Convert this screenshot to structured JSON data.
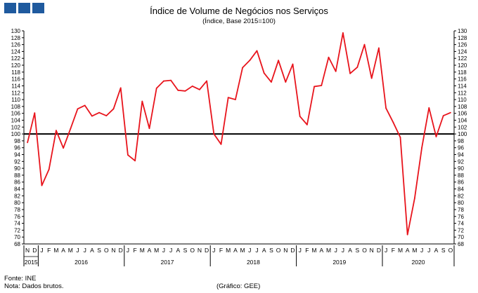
{
  "header": {
    "title": "Índice de Volume de Negócios nos Serviços",
    "subtitle": "(Índice, Base 2015=100)"
  },
  "footer": {
    "source": "Fonte: INE",
    "note": "Nota: Dados brutos.",
    "credit": "(Gráfico: GEE)"
  },
  "colors": {
    "series": "#e8141c",
    "reference": "#000000",
    "logo": "#1f5a9e"
  },
  "icons": [
    "logo-block",
    "logo-block",
    "logo-block"
  ],
  "chart_data": {
    "type": "line",
    "title": "Índice de Volume de Negócios nos Serviços",
    "subtitle": "(Índice, Base 2015=100)",
    "ylim": [
      68,
      130
    ],
    "ytick_step": 2,
    "secondary_y_axis": true,
    "grid": false,
    "reference_line": 100,
    "month_labels": [
      "N",
      "D",
      "J",
      "F",
      "M",
      "A",
      "M",
      "J",
      "J",
      "A",
      "S",
      "O",
      "N",
      "D",
      "J",
      "F",
      "M",
      "A",
      "M",
      "J",
      "J",
      "A",
      "S",
      "O",
      "N",
      "D",
      "J",
      "F",
      "M",
      "A",
      "M",
      "J",
      "J",
      "A",
      "S",
      "O",
      "N",
      "D",
      "J",
      "F",
      "M",
      "A",
      "M",
      "J",
      "J",
      "A",
      "S",
      "O",
      "N",
      "D",
      "J",
      "F",
      "M",
      "A",
      "M",
      "J",
      "J",
      "A",
      "S",
      "O"
    ],
    "year_groups": [
      {
        "label": "2015",
        "start": 0,
        "count": 2
      },
      {
        "label": "2016",
        "start": 2,
        "count": 12
      },
      {
        "label": "2017",
        "start": 14,
        "count": 12
      },
      {
        "label": "2018",
        "start": 26,
        "count": 12
      },
      {
        "label": "2019",
        "start": 38,
        "count": 12
      },
      {
        "label": "2020",
        "start": 50,
        "count": 10
      }
    ],
    "series": [
      {
        "values": [
          97.5,
          106.1,
          85.0,
          89.7,
          101.0,
          95.9,
          101.5,
          107.3,
          108.3,
          105.2,
          106.2,
          105.3,
          107.3,
          113.4,
          93.9,
          92.2,
          109.5,
          101.6,
          113.3,
          115.4,
          115.6,
          112.7,
          112.5,
          113.9,
          112.9,
          115.4,
          100.0,
          97.0,
          110.6,
          110.0,
          119.3,
          121.4,
          124.2,
          117.7,
          115.1,
          121.4,
          115.1,
          120.3,
          105.1,
          102.7,
          113.8,
          114.1,
          122.3,
          118.2,
          129.4,
          117.6,
          119.4,
          126.0,
          116.2,
          125.0,
          107.5,
          103.4,
          99.0,
          70.7,
          81.3,
          96.0,
          107.6,
          99.2,
          105.3,
          106.2
        ]
      }
    ]
  }
}
